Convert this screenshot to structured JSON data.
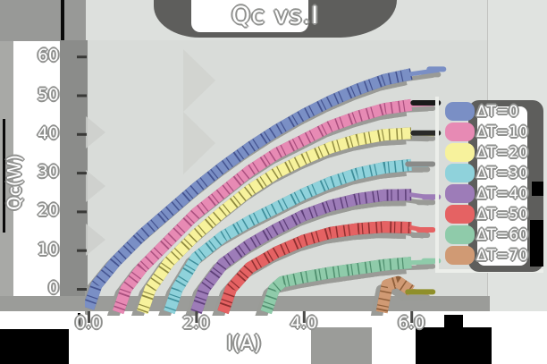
{
  "title": "Qc vs.I",
  "axes": {
    "xlabel": "I(A)",
    "ylabel": "Qc(W)",
    "x_ticks": [
      "0.0",
      "2.0",
      "4.0",
      "6.0"
    ],
    "x_tick_values": [
      0,
      2,
      4,
      6
    ],
    "y_ticks": [
      "0",
      "10",
      "20",
      "30",
      "40",
      "50",
      "60"
    ],
    "y_tick_values": [
      0,
      10,
      20,
      30,
      40,
      50,
      60
    ]
  },
  "colors": {
    "figure_bg": "#dde0dd",
    "plot_bg": "#d9dcd9",
    "shadow_grey": "#9a9b97",
    "dark_blob": "#5e5e5c",
    "text": "#ffffff",
    "text_outline": "#8f908e"
  },
  "chart_data": {
    "type": "line",
    "title": "Qc vs.I",
    "xlabel": "I(A)",
    "ylabel": "Qc(W)",
    "xlim": [
      0,
      6.6
    ],
    "ylim": [
      -2,
      63
    ],
    "grid": false,
    "legend_position": "right",
    "style": "sketchy ticked bands, white outlined text, grey drop shadows",
    "series": [
      {
        "name": "ΔT=0",
        "color": "#7a8fc5",
        "dark": "#44538f",
        "cap": "#7a8fc5",
        "points": [
          [
            0,
            -5
          ],
          [
            0.15,
            1
          ],
          [
            0.5,
            7
          ],
          [
            1,
            14
          ],
          [
            1.5,
            20
          ],
          [
            2,
            26
          ],
          [
            2.5,
            31.5
          ],
          [
            3,
            36.5
          ],
          [
            3.5,
            41
          ],
          [
            4,
            45
          ],
          [
            4.5,
            48.5
          ],
          [
            5,
            51.5
          ],
          [
            5.5,
            54
          ],
          [
            6,
            55.5
          ],
          [
            6.5,
            56.5
          ]
        ]
      },
      {
        "name": "ΔT=10",
        "color": "#e78ab4",
        "dark": "#a94f7e",
        "cap": "#1a1a1a",
        "points": [
          [
            0.55,
            -6
          ],
          [
            0.7,
            0
          ],
          [
            1,
            5.5
          ],
          [
            1.5,
            12.5
          ],
          [
            2,
            19.5
          ],
          [
            2.5,
            25
          ],
          [
            3,
            30.5
          ],
          [
            3.5,
            35
          ],
          [
            4,
            38.5
          ],
          [
            4.5,
            42
          ],
          [
            5,
            44.5
          ],
          [
            5.5,
            46.5
          ],
          [
            6,
            47.5
          ],
          [
            6.4,
            47.8
          ]
        ]
      },
      {
        "name": "ΔT=20",
        "color": "#f7f29c",
        "dark": "#8f8a3f",
        "cap": "#2a2a28",
        "points": [
          [
            1.0,
            -6
          ],
          [
            1.15,
            0
          ],
          [
            1.5,
            7
          ],
          [
            2,
            14
          ],
          [
            2.5,
            20
          ],
          [
            3,
            25.5
          ],
          [
            3.5,
            30
          ],
          [
            4,
            33.5
          ],
          [
            4.5,
            36.5
          ],
          [
            5,
            38.5
          ],
          [
            5.5,
            39.8
          ],
          [
            6,
            40.2
          ],
          [
            6.4,
            40
          ]
        ]
      },
      {
        "name": "ΔT=30",
        "color": "#8fd2db",
        "dark": "#3f8f9b",
        "cap": "#8a8b89",
        "points": [
          [
            1.5,
            -6
          ],
          [
            1.65,
            0
          ],
          [
            2,
            8
          ],
          [
            2.5,
            13.5
          ],
          [
            3,
            17.5
          ],
          [
            3.5,
            21
          ],
          [
            4,
            24.5
          ],
          [
            4.5,
            27.5
          ],
          [
            5,
            29.8
          ],
          [
            5.5,
            31.3
          ],
          [
            6,
            32
          ],
          [
            6.3,
            32
          ]
        ]
      },
      {
        "name": "ΔT=40",
        "color": "#9d7cb8",
        "dark": "#5d3f78",
        "cap": "#9d7cb8",
        "points": [
          [
            2.0,
            -6
          ],
          [
            2.15,
            0
          ],
          [
            2.5,
            6.5
          ],
          [
            3,
            11.5
          ],
          [
            3.5,
            15.5
          ],
          [
            4,
            19
          ],
          [
            4.5,
            21.5
          ],
          [
            5,
            23.2
          ],
          [
            5.5,
            24.2
          ],
          [
            6,
            24.3
          ],
          [
            6.4,
            23.5
          ]
        ]
      },
      {
        "name": "ΔT=50",
        "color": "#e56263",
        "dark": "#8f2f30",
        "cap": "#e56263",
        "points": [
          [
            2.5,
            -6
          ],
          [
            2.65,
            0
          ],
          [
            3,
            5.5
          ],
          [
            3.5,
            9.5
          ],
          [
            4,
            12.5
          ],
          [
            4.5,
            14.5
          ],
          [
            5,
            15.5
          ],
          [
            5.5,
            16
          ],
          [
            6,
            15.8
          ],
          [
            6.3,
            15
          ]
        ]
      },
      {
        "name": "ΔT=60",
        "color": "#8fcbaa",
        "dark": "#4f8f6e",
        "cap": "#8fcbaa",
        "points": [
          [
            3.3,
            -6
          ],
          [
            3.45,
            0
          ],
          [
            3.6,
            1.8
          ],
          [
            4,
            3
          ],
          [
            4.5,
            4.2
          ],
          [
            5,
            5.2
          ],
          [
            5.5,
            6.2
          ],
          [
            6,
            6.8
          ],
          [
            6.4,
            7
          ]
        ]
      },
      {
        "name": "ΔT=70",
        "color": "#d09a74",
        "dark": "#8f5f3a",
        "cap": "#8f8f2a",
        "points": [
          [
            5.45,
            -6
          ],
          [
            5.55,
            1
          ],
          [
            5.75,
            1.8
          ],
          [
            6,
            -0.5
          ],
          [
            6.3,
            -1
          ]
        ]
      }
    ]
  },
  "legend": {
    "items": [
      {
        "label": "ΔT=0",
        "color": "#7a8fc5"
      },
      {
        "label": "ΔT=10",
        "color": "#e78ab4"
      },
      {
        "label": "ΔT=20",
        "color": "#f7f29c"
      },
      {
        "label": "ΔT=30",
        "color": "#8fd2db"
      },
      {
        "label": "ΔT=40",
        "color": "#9d7cb8"
      },
      {
        "label": "ΔT=50",
        "color": "#e56263"
      },
      {
        "label": "ΔT=60",
        "color": "#8fcbaa"
      },
      {
        "label": "ΔT=70",
        "color": "#d09a74"
      }
    ]
  }
}
